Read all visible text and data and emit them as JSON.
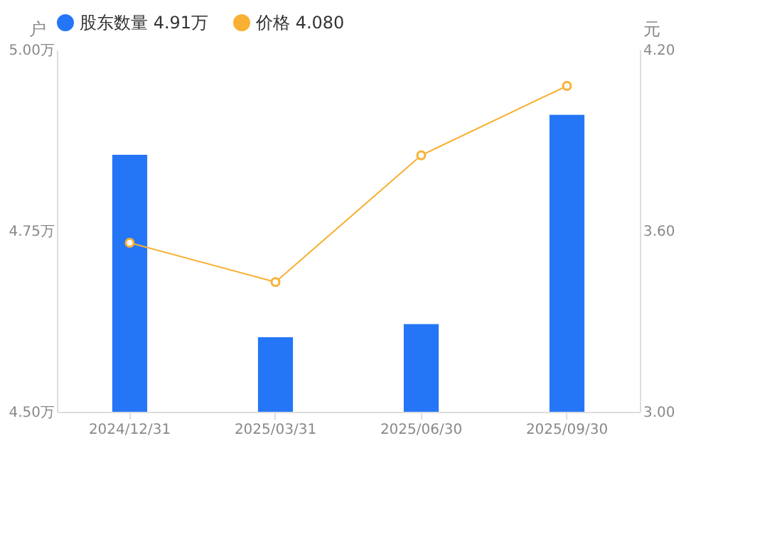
{
  "chart_data": {
    "type": "bar",
    "categories": [
      "2024/12/31",
      "2025/03/31",
      "2025/06/30",
      "2025/09/30"
    ],
    "series": [
      {
        "name": "股东数量  4.91万",
        "color": "#2476f7",
        "values": [
          4.855,
          4.603,
          4.621,
          4.91
        ]
      },
      {
        "name": "价格  4.080",
        "type": "line",
        "axis": "y2",
        "color": "#f8b133",
        "marker": "circle",
        "line_style": "solid",
        "values": [
          3.56,
          3.43,
          3.85,
          4.08
        ]
      }
    ],
    "ylabel": "户",
    "y2label": "元",
    "ylim": [
      4.5,
      5.0
    ],
    "yticks": [
      {
        "value": 4.5,
        "label": "4.50万"
      },
      {
        "value": 4.75,
        "label": "4.75万"
      },
      {
        "value": 5.0,
        "label": "5.00万"
      }
    ],
    "y2lim": [
      3.0,
      4.2
    ],
    "y2ticks": [
      {
        "value": 3.0,
        "label": "3.00"
      },
      {
        "value": 3.6,
        "label": "3.60"
      },
      {
        "value": 4.2,
        "label": "4.20"
      }
    ],
    "grid": false,
    "legend": "top left"
  }
}
